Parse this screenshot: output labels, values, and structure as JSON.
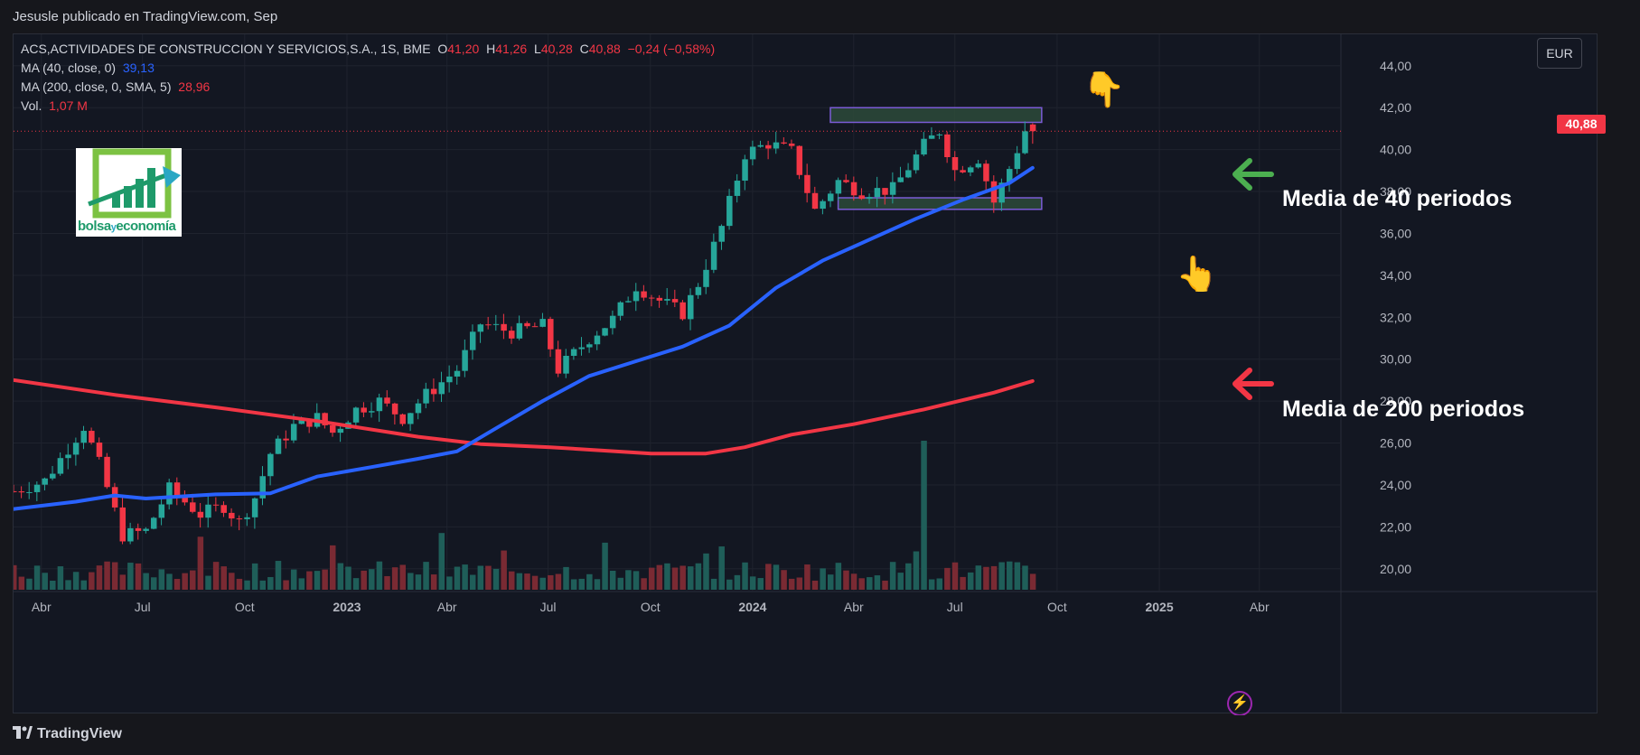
{
  "header": {
    "publisher_text": "Jesusle publicado en TradingView.com, Sep"
  },
  "legend": {
    "symbol_line": "ACS,ACTIVIDADES DE CONSTRUCCION Y SERVICIOS,S.A., 1S, BME",
    "open_label": "O",
    "open_value": "41,20",
    "high_label": "H",
    "high_value": "41,26",
    "low_label": "L",
    "low_value": "40,28",
    "close_label": "C",
    "close_value": "40,88",
    "change": "−0,24 (−0,58%)",
    "ma40_label": "MA (40, close, 0)",
    "ma40_value": "39,13",
    "ma200_label": "MA (200, close, 0, SMA, 5)",
    "ma200_value": "28,96",
    "vol_label": "Vol.",
    "vol_value": "1,07 M"
  },
  "currency_button": "EUR",
  "last_price_tag": "40,88",
  "logo": {
    "text_a": "bolsa",
    "text_b": "y",
    "text_c": "economía"
  },
  "annotations": {
    "ma40": "Media de 40 periodos",
    "ma200": "Media de 200 periodos"
  },
  "footer": {
    "brand": "TradingView"
  },
  "colors": {
    "up": "#26a69a",
    "down": "#f23645",
    "ma40": "#2962ff",
    "ma200": "#f23645",
    "vol_up": "#1f5e59",
    "vol_down": "#7a2a33",
    "box_fill": "#2d4a3a",
    "box_border": "#7b5cd6",
    "arrow_green": "#4caf50",
    "arrow_red": "#f23645",
    "hand": "#f5c518"
  },
  "chart_data": {
    "type": "candlestick",
    "title": "ACS,ACTIVIDADES DE CONSTRUCCION Y SERVICIOS,S.A., 1S, BME",
    "ylim": [
      19.0,
      45.5
    ],
    "yticks": [
      "44,00",
      "42,00",
      "40,00",
      "38,00",
      "36,00",
      "34,00",
      "32,00",
      "30,00",
      "28,00",
      "26,00",
      "24,00",
      "22,00",
      "20,00"
    ],
    "xtick_labels": [
      "Abr",
      "Jul",
      "Oct",
      "2023",
      "Abr",
      "Jul",
      "Oct",
      "2024",
      "Abr",
      "Jul",
      "Oct",
      "2025",
      "Abr"
    ],
    "xlim": [
      "2022-03-07",
      "2025-06-02"
    ],
    "xticks": [
      "2022-04-01",
      "2022-07-01",
      "2022-10-01",
      "2023-01-01",
      "2023-04-01",
      "2023-07-01",
      "2023-10-01",
      "2024-01-01",
      "2024-04-01",
      "2024-07-01",
      "2024-10-01",
      "2025-01-01",
      "2025-04-01"
    ],
    "close_anchors": [
      [
        "2022-03-07",
        23.7
      ],
      [
        "2022-04-04",
        24.2
      ],
      [
        "2022-05-09",
        26.8
      ],
      [
        "2022-05-23",
        25.0
      ],
      [
        "2022-06-13",
        21.6
      ],
      [
        "2022-07-04",
        21.8
      ],
      [
        "2022-07-25",
        23.8
      ],
      [
        "2022-08-22",
        22.6
      ],
      [
        "2022-09-12",
        23.0
      ],
      [
        "2022-09-26",
        22.2
      ],
      [
        "2022-10-10",
        23.4
      ],
      [
        "2022-10-24",
        25.5
      ],
      [
        "2022-11-14",
        26.8
      ],
      [
        "2022-12-05",
        27.2
      ],
      [
        "2022-12-19",
        26.5
      ],
      [
        "2023-01-09",
        27.6
      ],
      [
        "2023-01-30",
        28.0
      ],
      [
        "2023-02-20",
        27.2
      ],
      [
        "2023-03-13",
        28.3
      ],
      [
        "2023-04-10",
        29.5
      ],
      [
        "2023-05-01",
        31.7
      ],
      [
        "2023-05-29",
        31.3
      ],
      [
        "2023-06-26",
        31.6
      ],
      [
        "2023-07-10",
        29.5
      ],
      [
        "2023-08-07",
        31.0
      ],
      [
        "2023-08-28",
        31.9
      ],
      [
        "2023-09-18",
        33.5
      ],
      [
        "2023-10-09",
        32.8
      ],
      [
        "2023-10-30",
        32.2
      ],
      [
        "2023-11-13",
        33.6
      ],
      [
        "2023-12-04",
        36.3
      ],
      [
        "2023-12-25",
        39.8
      ],
      [
        "2024-01-15",
        40.3
      ],
      [
        "2024-02-05",
        39.9
      ],
      [
        "2024-02-26",
        37.1
      ],
      [
        "2024-03-18",
        38.5
      ],
      [
        "2024-04-08",
        38.0
      ],
      [
        "2024-05-06",
        38.1
      ],
      [
        "2024-06-03",
        40.2
      ],
      [
        "2024-06-17",
        40.9
      ],
      [
        "2024-07-01",
        39.0
      ],
      [
        "2024-07-22",
        39.6
      ],
      [
        "2024-08-05",
        37.5
      ],
      [
        "2024-08-19",
        39.1
      ],
      [
        "2024-09-02",
        40.9
      ],
      [
        "2024-09-09",
        40.88
      ]
    ],
    "series": [
      {
        "name": "MA (40, close, 0)",
        "value_label": "39,13",
        "points": [
          [
            "2022-03-07",
            22.85
          ],
          [
            "2022-05-02",
            23.2
          ],
          [
            "2022-06-06",
            23.5
          ],
          [
            "2022-07-04",
            23.35
          ],
          [
            "2022-09-05",
            23.55
          ],
          [
            "2022-10-24",
            23.6
          ],
          [
            "2022-12-05",
            24.4
          ],
          [
            "2023-01-23",
            24.85
          ],
          [
            "2023-03-06",
            25.25
          ],
          [
            "2023-04-10",
            25.6
          ],
          [
            "2023-05-15",
            26.7
          ],
          [
            "2023-06-26",
            28.0
          ],
          [
            "2023-08-07",
            29.2
          ],
          [
            "2023-09-18",
            29.9
          ],
          [
            "2023-10-30",
            30.6
          ],
          [
            "2023-12-11",
            31.6
          ],
          [
            "2024-01-22",
            33.4
          ],
          [
            "2024-03-04",
            34.7
          ],
          [
            "2024-04-15",
            35.7
          ],
          [
            "2024-05-27",
            36.7
          ],
          [
            "2024-07-08",
            37.6
          ],
          [
            "2024-08-19",
            38.4
          ],
          [
            "2024-09-09",
            39.13
          ]
        ]
      },
      {
        "name": "MA (200, close, 0, SMA, 5)",
        "value_label": "28,96",
        "points": [
          [
            "2022-03-07",
            29.0
          ],
          [
            "2022-06-06",
            28.3
          ],
          [
            "2022-09-05",
            27.7
          ],
          [
            "2022-12-05",
            27.05
          ],
          [
            "2023-03-06",
            26.3
          ],
          [
            "2023-05-01",
            25.95
          ],
          [
            "2023-07-03",
            25.8
          ],
          [
            "2023-10-02",
            25.5
          ],
          [
            "2023-11-20",
            25.5
          ],
          [
            "2023-12-25",
            25.8
          ],
          [
            "2024-02-05",
            26.4
          ],
          [
            "2024-04-01",
            26.9
          ],
          [
            "2024-06-03",
            27.6
          ],
          [
            "2024-08-05",
            28.4
          ],
          [
            "2024-09-09",
            28.96
          ]
        ]
      }
    ],
    "volume_summary": {
      "label": "Vol.",
      "last": "1,07 M",
      "peak_date": "2024-06-03"
    },
    "zones": [
      {
        "from": "2024-03-11",
        "to": "2024-09-09",
        "low": 41.3,
        "high": 42.0
      },
      {
        "from": "2024-03-18",
        "to": "2024-09-09",
        "low": 37.15,
        "high": 37.7
      }
    ],
    "last_price": 40.88,
    "grid": true
  }
}
